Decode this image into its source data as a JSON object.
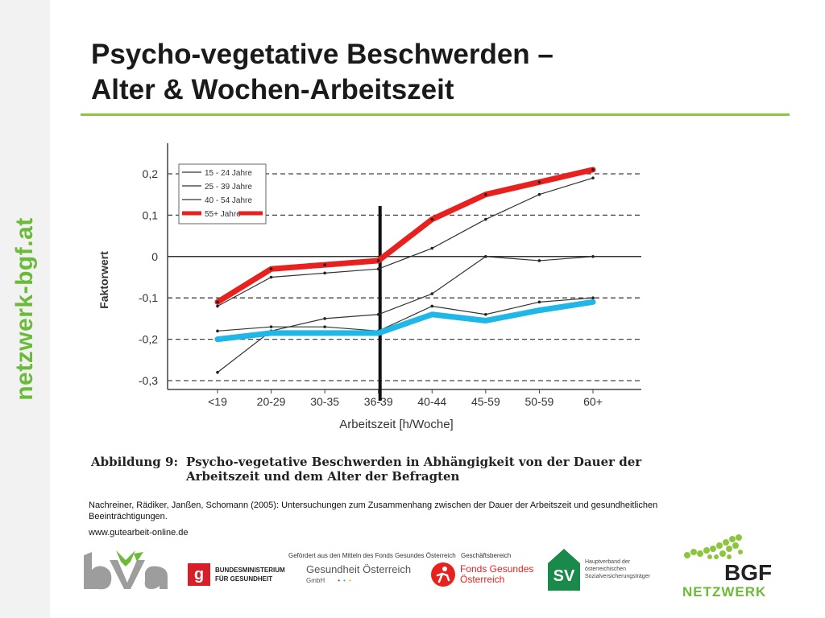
{
  "side_label": "netzwerk-bgf.at",
  "title": {
    "line1": "Psycho-vegetative Beschwerden –",
    "line2": "Alter & Wochen-Arbeitszeit"
  },
  "chart_data": {
    "type": "line",
    "categories": [
      "<19",
      "20-29",
      "30-35",
      "36-39",
      "40-44",
      "45-59",
      "50-59",
      "60+"
    ],
    "xlabel": "Arbeitszeit [h/Woche]",
    "ylabel": "Faktorwert",
    "ylim": [
      -0.3,
      0.2
    ],
    "yticks": [
      "0,2",
      "0,1",
      "0",
      "-0,1",
      "-0,2",
      "-0,3"
    ],
    "ytick_values": [
      0.2,
      0.1,
      0,
      -0.1,
      -0.2,
      -0.3
    ],
    "grid": "dashed horizontal",
    "legend_position": "top-left",
    "vertical_marker_category": "36-39",
    "series": [
      {
        "name": "15 - 24 Jahre",
        "values": [
          -0.28,
          -0.18,
          -0.15,
          -0.14,
          -0.09,
          0.0,
          -0.01,
          0.0
        ],
        "color": "#333333"
      },
      {
        "name": "25 - 39 Jahre",
        "values": [
          -0.12,
          -0.05,
          -0.04,
          -0.03,
          0.02,
          0.09,
          0.15,
          0.19
        ],
        "color": "#333333"
      },
      {
        "name": "40 - 54 Jahre",
        "values": [
          -0.18,
          -0.17,
          -0.17,
          -0.18,
          -0.12,
          -0.14,
          -0.11,
          -0.1
        ],
        "color": "#333333"
      },
      {
        "name": "55+ Jahre",
        "values": [
          -0.11,
          -0.03,
          -0.02,
          -0.01,
          0.09,
          0.15,
          0.18,
          0.21
        ],
        "color": "#e8211f"
      }
    ],
    "highlight_line": {
      "values": [
        -0.2,
        -0.185,
        -0.185,
        -0.185,
        -0.14,
        -0.155,
        -0.13,
        -0.11
      ],
      "color": "#1fb6e8"
    }
  },
  "caption": {
    "label": "Abbildung 9:",
    "line1": "Psycho-vegetative Beschwerden in Abhängigkeit von der Dauer der",
    "line2": "Arbeitszeit und dem Alter der Befragten"
  },
  "source": "Nachreiner, Rädiker, Janßen, Schomann (2005): Untersuchungen zum Zusammenhang zwischen der Dauer der Arbeitszeit und gesundheitlichen Beeinträchtigungen.",
  "url": "www.gutearbeit-online.de",
  "footer": {
    "bva": "bva",
    "ministry": {
      "line1": "BUNDESMINISTERIUM",
      "line2": "FÜR GESUNDHEIT"
    },
    "funded_note": "Gefördert aus den Mitteln des Fonds Gesundes Österreich",
    "goe": {
      "name": "Gesundheit Österreich",
      "suffix": "GmbH"
    },
    "office_note": "Geschäftsbereich",
    "fgoe": {
      "line1": "Fonds Gesundes",
      "line2": "Österreich"
    },
    "hv": {
      "line1": "Hauptverband der",
      "line2": "österreichischen",
      "line3": "Sozialversicherungsträger"
    },
    "bgf": {
      "line1": "BGF",
      "line2": "NETZWERK"
    }
  }
}
